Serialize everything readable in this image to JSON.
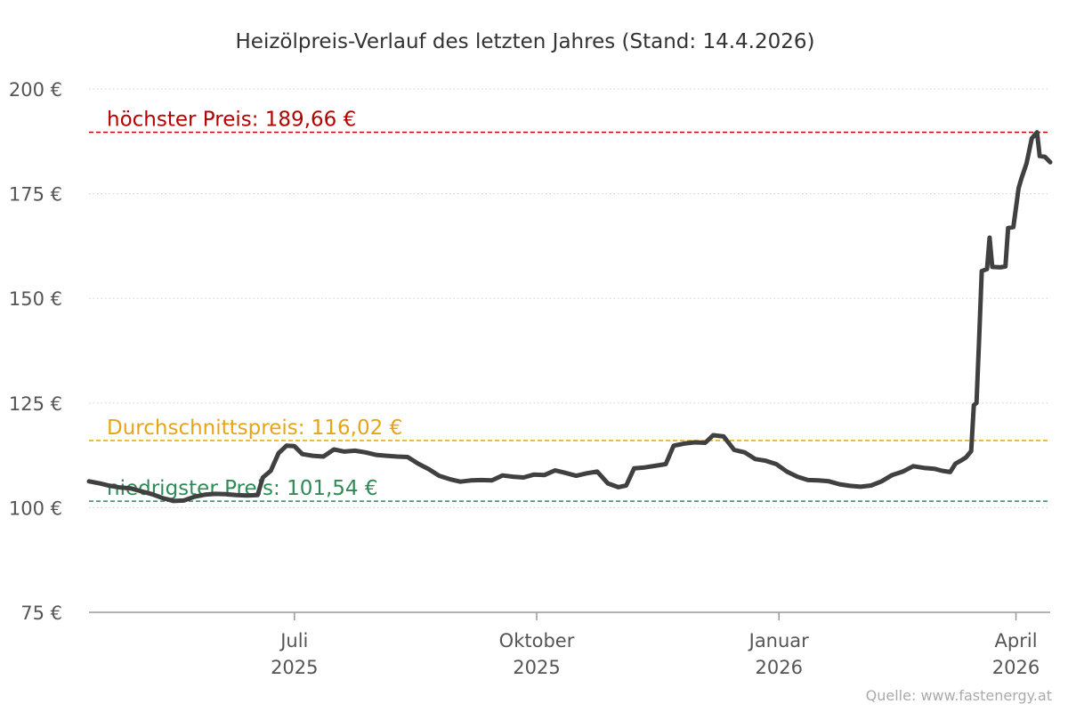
{
  "chart_data": {
    "type": "line",
    "title": "Heizölpreis-Verlauf des letzten Jahres (Stand: 14.4.2026)",
    "source": "Quelle: www.fastenergy.at",
    "y_tick_labels": [
      "75 €",
      "100 €",
      "125 €",
      "150 €",
      "175 €",
      "200 €"
    ],
    "y_ticks": [
      75,
      100,
      125,
      150,
      175,
      200
    ],
    "ylim": [
      75,
      200
    ],
    "x_tick_labels": [
      {
        "date": "2025-07-01",
        "line1": "Juli",
        "line2": "2025"
      },
      {
        "date": "2025-10-01",
        "line1": "Oktober",
        "line2": "2025"
      },
      {
        "date": "2026-01-01",
        "line1": "Januar",
        "line2": "2026"
      },
      {
        "date": "2026-04-01",
        "line1": "April",
        "line2": "2026"
      }
    ],
    "xlim": [
      "2025-04-14",
      "2026-04-14"
    ],
    "grid": true,
    "reference_lines": [
      {
        "label": "höchster Preis: 189,66 €",
        "value": 189.66,
        "color": "#b30000"
      },
      {
        "label": "Durchschnittspreis: 116,02 €",
        "value": 116.02,
        "color": "#e8a317"
      },
      {
        "label": "niedrigster Preis: 101,54 €",
        "value": 101.54,
        "color": "#2e8b57"
      }
    ],
    "series": [
      {
        "color": "#404040",
        "points": [
          [
            "2025-04-14",
            106.3
          ],
          [
            "2025-04-18",
            105.8
          ],
          [
            "2025-04-22",
            105.2
          ],
          [
            "2025-04-26",
            104.8
          ],
          [
            "2025-04-30",
            104.6
          ],
          [
            "2025-05-04",
            103.9
          ],
          [
            "2025-05-08",
            103.2
          ],
          [
            "2025-05-12",
            102.3
          ],
          [
            "2025-05-16",
            101.6
          ],
          [
            "2025-05-20",
            101.7
          ],
          [
            "2025-05-24",
            102.6
          ],
          [
            "2025-05-28",
            103.1
          ],
          [
            "2025-06-01",
            103.3
          ],
          [
            "2025-06-05",
            103.2
          ],
          [
            "2025-06-09",
            103.0
          ],
          [
            "2025-06-13",
            102.9
          ],
          [
            "2025-06-17",
            103.0
          ],
          [
            "2025-06-19",
            107.2
          ],
          [
            "2025-06-22",
            108.8
          ],
          [
            "2025-06-25",
            113.0
          ],
          [
            "2025-06-28",
            114.8
          ],
          [
            "2025-07-01",
            114.7
          ],
          [
            "2025-07-04",
            112.8
          ],
          [
            "2025-07-08",
            112.4
          ],
          [
            "2025-07-12",
            112.2
          ],
          [
            "2025-07-16",
            113.9
          ],
          [
            "2025-07-20",
            113.4
          ],
          [
            "2025-07-24",
            113.6
          ],
          [
            "2025-07-28",
            113.2
          ],
          [
            "2025-08-01",
            112.6
          ],
          [
            "2025-08-05",
            112.4
          ],
          [
            "2025-08-09",
            112.2
          ],
          [
            "2025-08-13",
            112.1
          ],
          [
            "2025-08-17",
            110.5
          ],
          [
            "2025-08-21",
            109.2
          ],
          [
            "2025-08-25",
            107.6
          ],
          [
            "2025-08-29",
            106.8
          ],
          [
            "2025-09-02",
            106.2
          ],
          [
            "2025-09-06",
            106.5
          ],
          [
            "2025-09-10",
            106.6
          ],
          [
            "2025-09-14",
            106.5
          ],
          [
            "2025-09-18",
            107.7
          ],
          [
            "2025-09-22",
            107.4
          ],
          [
            "2025-09-26",
            107.2
          ],
          [
            "2025-09-30",
            107.9
          ],
          [
            "2025-10-04",
            107.8
          ],
          [
            "2025-10-08",
            108.9
          ],
          [
            "2025-10-12",
            108.3
          ],
          [
            "2025-10-16",
            107.6
          ],
          [
            "2025-10-20",
            108.2
          ],
          [
            "2025-10-24",
            108.6
          ],
          [
            "2025-10-28",
            105.8
          ],
          [
            "2025-11-01",
            104.9
          ],
          [
            "2025-11-04",
            105.3
          ],
          [
            "2025-11-07",
            109.4
          ],
          [
            "2025-11-11",
            109.6
          ],
          [
            "2025-11-15",
            110.0
          ],
          [
            "2025-11-19",
            110.4
          ],
          [
            "2025-11-22",
            114.8
          ],
          [
            "2025-11-26",
            115.3
          ],
          [
            "2025-11-30",
            115.6
          ],
          [
            "2025-12-04",
            115.5
          ],
          [
            "2025-12-07",
            117.3
          ],
          [
            "2025-12-11",
            117.0
          ],
          [
            "2025-12-15",
            113.8
          ],
          [
            "2025-12-19",
            113.2
          ],
          [
            "2025-12-23",
            111.6
          ],
          [
            "2025-12-27",
            111.2
          ],
          [
            "2025-12-31",
            110.4
          ],
          [
            "2026-01-04",
            108.6
          ],
          [
            "2026-01-08",
            107.4
          ],
          [
            "2026-01-12",
            106.6
          ],
          [
            "2026-01-16",
            106.5
          ],
          [
            "2026-01-20",
            106.3
          ],
          [
            "2026-01-24",
            105.6
          ],
          [
            "2026-01-28",
            105.2
          ],
          [
            "2026-02-01",
            105.0
          ],
          [
            "2026-02-05",
            105.3
          ],
          [
            "2026-02-09",
            106.3
          ],
          [
            "2026-02-13",
            107.8
          ],
          [
            "2026-02-17",
            108.6
          ],
          [
            "2026-02-21",
            109.9
          ],
          [
            "2026-02-25",
            109.5
          ],
          [
            "2026-03-01",
            109.3
          ],
          [
            "2026-03-04",
            108.8
          ],
          [
            "2026-03-07",
            108.5
          ],
          [
            "2026-03-09",
            110.5
          ],
          [
            "2026-03-11",
            111.2
          ],
          [
            "2026-03-13",
            112.0
          ],
          [
            "2026-03-15",
            113.5
          ],
          [
            "2026-03-16",
            124.5
          ],
          [
            "2026-03-17",
            125.0
          ],
          [
            "2026-03-18",
            140.0
          ],
          [
            "2026-03-19",
            156.5
          ],
          [
            "2026-03-21",
            157.0
          ],
          [
            "2026-03-22",
            164.5
          ],
          [
            "2026-03-23",
            157.5
          ],
          [
            "2026-03-26",
            157.4
          ],
          [
            "2026-03-28",
            157.6
          ],
          [
            "2026-03-29",
            166.8
          ],
          [
            "2026-03-31",
            167.0
          ],
          [
            "2026-04-02",
            176.3
          ],
          [
            "2026-04-03",
            178.5
          ],
          [
            "2026-04-05",
            182.2
          ],
          [
            "2026-04-07",
            188.2
          ],
          [
            "2026-04-09",
            189.66
          ],
          [
            "2026-04-10",
            184.0
          ],
          [
            "2026-04-12",
            183.8
          ],
          [
            "2026-04-14",
            182.5
          ]
        ]
      }
    ]
  }
}
